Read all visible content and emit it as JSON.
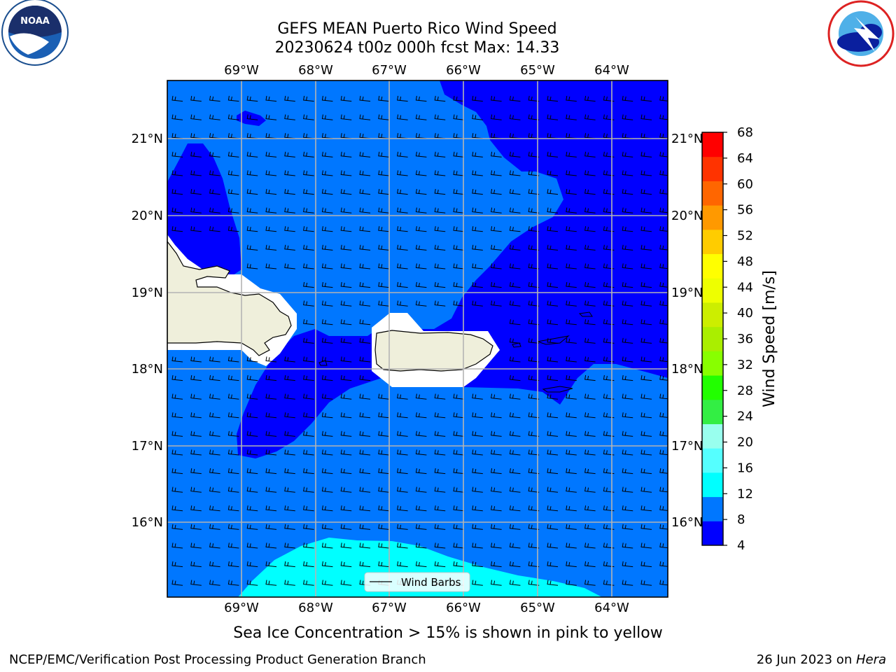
{
  "title": {
    "line1": "GEFS MEAN Puerto Rico Wind Speed",
    "line2": "20230624 t00z 000h fcst   Max: 14.33"
  },
  "logos": {
    "left": {
      "icon": "noaa-logo",
      "text": "NOAA",
      "ring_text": "NATIONAL OCEANIC AND ATMOSPHERIC ADMINISTRATION · U.S. DEPARTMENT OF COMMERCE"
    },
    "right": {
      "icon": "nws-logo",
      "ring_text": "NATIONAL WEATHER SERVICE"
    }
  },
  "map": {
    "lon_ticks": [
      "69°W",
      "68°W",
      "67°W",
      "66°W",
      "65°W",
      "64°W"
    ],
    "lat_ticks": [
      "21°N",
      "20°N",
      "19°N",
      "18°N",
      "17°N",
      "16°N"
    ],
    "legend_label": "Wind Barbs",
    "colors": {
      "level_4_8": "#0000ff",
      "level_8_12": "#0077ff",
      "level_12_16": "#00ffff",
      "land": "#efefdb",
      "grid": "#b4b4b4"
    }
  },
  "colorbar": {
    "label": "Wind Speed [m/s]",
    "ticks": [
      "68",
      "64",
      "60",
      "56",
      "52",
      "48",
      "44",
      "40",
      "36",
      "32",
      "28",
      "24",
      "20",
      "16",
      "12",
      "8",
      "4"
    ],
    "colors": [
      "#0000ff",
      "#0077ff",
      "#00ffff",
      "#55ffff",
      "#99ffee",
      "#33ee44",
      "#22ff00",
      "#88ff00",
      "#aaee00",
      "#ccee00",
      "#eeff00",
      "#ffff00",
      "#ffcc00",
      "#ff9900",
      "#ff6600",
      "#ff3300",
      "#ff0000"
    ]
  },
  "subtitle": "Sea Ice Concentration > 15% is shown in pink to yellow",
  "footer": {
    "left": "NCEP/EMC/Verification Post Processing Product Generation Branch",
    "right_date": "26 Jun 2023 on ",
    "right_host": "Hera"
  }
}
